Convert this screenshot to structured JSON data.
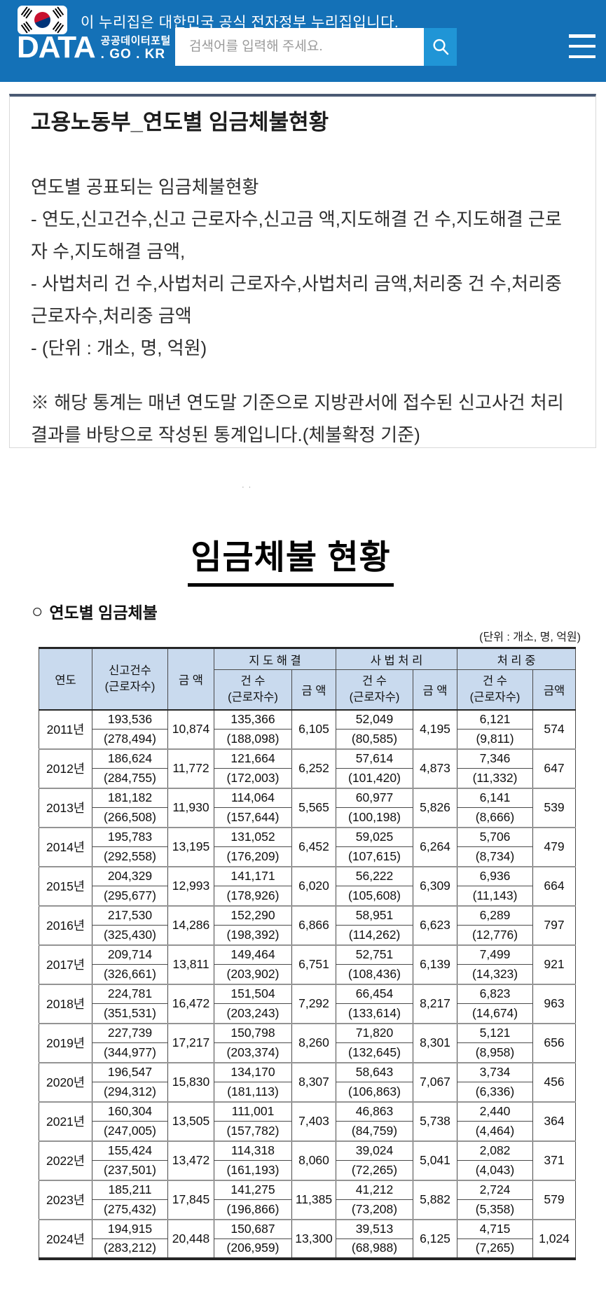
{
  "header": {
    "official_notice": "이 누리집은 대한민국 공식 전자정부 누리집입니다.",
    "logo": {
      "main": "DATA",
      "sub_top": "공공데이터포털",
      "sub_bottom": ". GO . KR"
    },
    "search": {
      "placeholder": "검색어를 입력해 주세요."
    },
    "colors": {
      "banner_blue": "#1471b7",
      "search_button_blue": "#2095d6"
    }
  },
  "dataset_card": {
    "title": "고용노동부_연도별 임금체불현황",
    "description_lines": [
      "연도별 공표되는 임금체불현황",
      "- 연도,신고건수,신고 근로자수,신고금 액,지도해결 건 수,지도해결 근로자 수,지도해결 금액,",
      "- 사법처리 건 수,사법처리 근로자수,사법처리 금액,처리중 건 수,처리중 근로자수,처리중 금액",
      "- (단위 : 개소, 명, 억원)"
    ],
    "note": "※ 해당 통계는 매년 연도말 기준으로 지방관서에 접수된 신고사건 처리결과를 바탕으로 작성된 통계입니다.(체불확정 기준)"
  },
  "report": {
    "dots": "··",
    "title": "임금체불 현황",
    "section_bullet": "○",
    "section_label": "연도별 임금체불",
    "unit_note": "(단위 : 개소, 명, 억원)"
  },
  "table": {
    "headers": {
      "year": "연도",
      "reported_count": "신고건수",
      "workers_sub": "(근로자수)",
      "amount": "금 액",
      "group_guidance": "지 도 해 결",
      "group_judicial": "사 법 처 리",
      "group_pending": "처 리 중",
      "count": "건 수",
      "amount_last": "금액"
    },
    "header_bg": "#c9daee",
    "rows": [
      {
        "year": "2011년",
        "report": [
          "193,536",
          "(278,494)"
        ],
        "report_amt": "10,874",
        "guide": [
          "135,366",
          "(188,098)"
        ],
        "guide_amt": "6,105",
        "judicial": [
          "52,049",
          "(80,585)"
        ],
        "judicial_amt": "4,195",
        "pending": [
          "6,121",
          "(9,811)"
        ],
        "pending_amt": "574"
      },
      {
        "year": "2012년",
        "report": [
          "186,624",
          "(284,755)"
        ],
        "report_amt": "11,772",
        "guide": [
          "121,664",
          "(172,003)"
        ],
        "guide_amt": "6,252",
        "judicial": [
          "57,614",
          "(101,420)"
        ],
        "judicial_amt": "4,873",
        "pending": [
          "7,346",
          "(11,332)"
        ],
        "pending_amt": "647"
      },
      {
        "year": "2013년",
        "report": [
          "181,182",
          "(266,508)"
        ],
        "report_amt": "11,930",
        "guide": [
          "114,064",
          "(157,644)"
        ],
        "guide_amt": "5,565",
        "judicial": [
          "60,977",
          "(100,198)"
        ],
        "judicial_amt": "5,826",
        "pending": [
          "6,141",
          "(8,666)"
        ],
        "pending_amt": "539"
      },
      {
        "year": "2014년",
        "report": [
          "195,783",
          "(292,558)"
        ],
        "report_amt": "13,195",
        "guide": [
          "131,052",
          "(176,209)"
        ],
        "guide_amt": "6,452",
        "judicial": [
          "59,025",
          "(107,615)"
        ],
        "judicial_amt": "6,264",
        "pending": [
          "5,706",
          "(8,734)"
        ],
        "pending_amt": "479"
      },
      {
        "year": "2015년",
        "report": [
          "204,329",
          "(295,677)"
        ],
        "report_amt": "12,993",
        "guide": [
          "141,171",
          "(178,926)"
        ],
        "guide_amt": "6,020",
        "judicial": [
          "56,222",
          "(105,608)"
        ],
        "judicial_amt": "6,309",
        "pending": [
          "6,936",
          "(11,143)"
        ],
        "pending_amt": "664"
      },
      {
        "year": "2016년",
        "report": [
          "217,530",
          "(325,430)"
        ],
        "report_amt": "14,286",
        "guide": [
          "152,290",
          "(198,392)"
        ],
        "guide_amt": "6,866",
        "judicial": [
          "58,951",
          "(114,262)"
        ],
        "judicial_amt": "6,623",
        "pending": [
          "6,289",
          "(12,776)"
        ],
        "pending_amt": "797"
      },
      {
        "year": "2017년",
        "report": [
          "209,714",
          "(326,661)"
        ],
        "report_amt": "13,811",
        "guide": [
          "149,464",
          "(203,902)"
        ],
        "guide_amt": "6,751",
        "judicial": [
          "52,751",
          "(108,436)"
        ],
        "judicial_amt": "6,139",
        "pending": [
          "7,499",
          "(14,323)"
        ],
        "pending_amt": "921"
      },
      {
        "year": "2018년",
        "report": [
          "224,781",
          "(351,531)"
        ],
        "report_amt": "16,472",
        "guide": [
          "151,504",
          "(203,243)"
        ],
        "guide_amt": "7,292",
        "judicial": [
          "66,454",
          "(133,614)"
        ],
        "judicial_amt": "8,217",
        "pending": [
          "6,823",
          "(14,674)"
        ],
        "pending_amt": "963"
      },
      {
        "year": "2019년",
        "report": [
          "227,739",
          "(344,977)"
        ],
        "report_amt": "17,217",
        "guide": [
          "150,798",
          "(203,374)"
        ],
        "guide_amt": "8,260",
        "judicial": [
          "71,820",
          "(132,645)"
        ],
        "judicial_amt": "8,301",
        "pending": [
          "5,121",
          "(8,958)"
        ],
        "pending_amt": "656"
      },
      {
        "year": "2020년",
        "report": [
          "196,547",
          "(294,312)"
        ],
        "report_amt": "15,830",
        "guide": [
          "134,170",
          "(181,113)"
        ],
        "guide_amt": "8,307",
        "judicial": [
          "58,643",
          "(106,863)"
        ],
        "judicial_amt": "7,067",
        "pending": [
          "3,734",
          "(6,336)"
        ],
        "pending_amt": "456"
      },
      {
        "year": "2021년",
        "report": [
          "160,304",
          "(247,005)"
        ],
        "report_amt": "13,505",
        "guide": [
          "111,001",
          "(157,782)"
        ],
        "guide_amt": "7,403",
        "judicial": [
          "46,863",
          "(84,759)"
        ],
        "judicial_amt": "5,738",
        "pending": [
          "2,440",
          "(4,464)"
        ],
        "pending_amt": "364"
      },
      {
        "year": "2022년",
        "report": [
          "155,424",
          "(237,501)"
        ],
        "report_amt": "13,472",
        "guide": [
          "114,318",
          "(161,193)"
        ],
        "guide_amt": "8,060",
        "judicial": [
          "39,024",
          "(72,265)"
        ],
        "judicial_amt": "5,041",
        "pending": [
          "2,082",
          "(4,043)"
        ],
        "pending_amt": "371"
      },
      {
        "year": "2023년",
        "report": [
          "185,211",
          "(275,432)"
        ],
        "report_amt": "17,845",
        "guide": [
          "141,275",
          "(196,866)"
        ],
        "guide_amt": "11,385",
        "judicial": [
          "41,212",
          "(73,208)"
        ],
        "judicial_amt": "5,882",
        "pending": [
          "2,724",
          "(5,358)"
        ],
        "pending_amt": "579"
      },
      {
        "year": "2024년",
        "report": [
          "194,915",
          "(283,212)"
        ],
        "report_amt": "20,448",
        "guide": [
          "150,687",
          "(206,959)"
        ],
        "guide_amt": "13,300",
        "judicial": [
          "39,513",
          "(68,988)"
        ],
        "judicial_amt": "6,125",
        "pending": [
          "4,715",
          "(7,265)"
        ],
        "pending_amt": "1,024"
      }
    ]
  }
}
